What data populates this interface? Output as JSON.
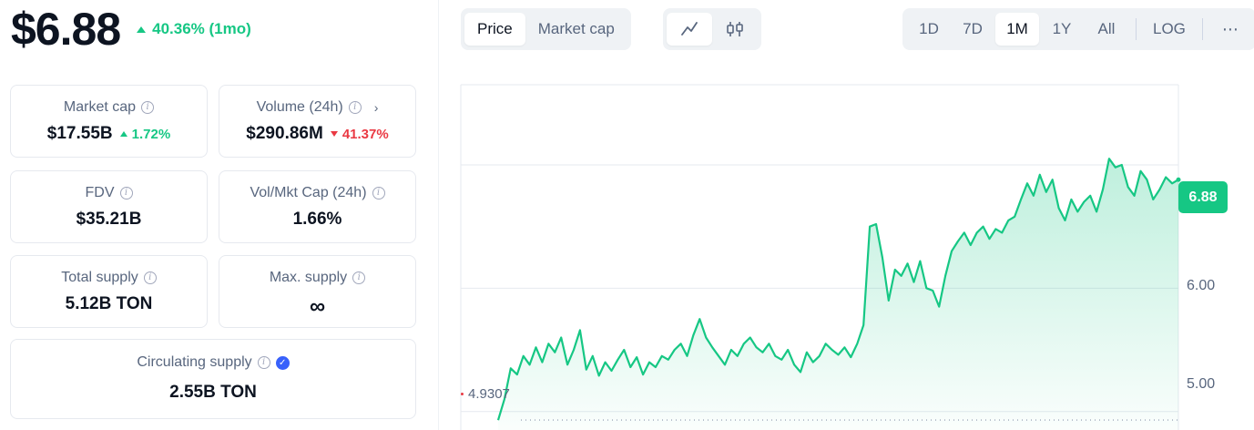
{
  "header": {
    "price": "$6.88",
    "change": "40.36% (1mo)",
    "change_direction": "up"
  },
  "stats": {
    "market_cap": {
      "label": "Market cap",
      "value": "$17.55B",
      "change": "1.72%",
      "direction": "up"
    },
    "volume": {
      "label": "Volume (24h)",
      "value": "$290.86M",
      "change": "41.37%",
      "direction": "down"
    },
    "fdv": {
      "label": "FDV",
      "value": "$35.21B"
    },
    "vol_mkt_cap": {
      "label": "Vol/Mkt Cap (24h)",
      "value": "1.66%"
    },
    "total_supply": {
      "label": "Total supply",
      "value": "5.12B TON"
    },
    "max_supply": {
      "label": "Max. supply",
      "value": "∞"
    },
    "circulating_supply": {
      "label": "Circulating supply",
      "value": "2.55B TON"
    }
  },
  "toolbar": {
    "metric_tabs": [
      {
        "label": "Price",
        "active": true
      },
      {
        "label": "Market cap",
        "active": false
      }
    ],
    "chart_types": [
      {
        "icon": "line-chart-icon",
        "active": true
      },
      {
        "icon": "candlestick-icon",
        "active": false
      }
    ],
    "ranges": [
      {
        "label": "1D",
        "active": false
      },
      {
        "label": "7D",
        "active": false
      },
      {
        "label": "1M",
        "active": true
      },
      {
        "label": "1Y",
        "active": false
      },
      {
        "label": "All",
        "active": false
      }
    ],
    "log_label": "LOG",
    "more_label": "⋯"
  },
  "chart_data": {
    "type": "area",
    "current_price_label": "6.88",
    "min_label": "4.9307",
    "y_ticks": [
      "6.00",
      "5.00"
    ],
    "ylim": [
      4.85,
      7.65
    ],
    "grid": true,
    "colors": {
      "line": "#16c784",
      "fill_top": "#16c784",
      "up": "#16c784",
      "down": "#ea3943",
      "accent": "#3861fb"
    },
    "series": [
      {
        "values": [
          4.93,
          5.1,
          5.35,
          5.3,
          5.45,
          5.38,
          5.52,
          5.4,
          5.55,
          5.48,
          5.6,
          5.38,
          5.5,
          5.66,
          5.34,
          5.45,
          5.29,
          5.4,
          5.33,
          5.42,
          5.5,
          5.36,
          5.44,
          5.3,
          5.4,
          5.36,
          5.45,
          5.42,
          5.5,
          5.55,
          5.45,
          5.62,
          5.75,
          5.6,
          5.52,
          5.45,
          5.38,
          5.5,
          5.45,
          5.55,
          5.6,
          5.52,
          5.48,
          5.55,
          5.45,
          5.42,
          5.5,
          5.38,
          5.32,
          5.48,
          5.4,
          5.45,
          5.55,
          5.5,
          5.46,
          5.52,
          5.44,
          5.55,
          5.7,
          6.5,
          6.52,
          6.25,
          5.9,
          6.15,
          6.1,
          6.2,
          6.05,
          6.22,
          6.0,
          5.98,
          5.85,
          6.1,
          6.3,
          6.38,
          6.45,
          6.35,
          6.45,
          6.5,
          6.4,
          6.48,
          6.45,
          6.55,
          6.58,
          6.72,
          6.85,
          6.75,
          6.92,
          6.78,
          6.88,
          6.65,
          6.55,
          6.72,
          6.62,
          6.7,
          6.75,
          6.62,
          6.8,
          7.05,
          6.98,
          7.0,
          6.82,
          6.75,
          6.95,
          6.88,
          6.72,
          6.8,
          6.9,
          6.85,
          6.88
        ]
      }
    ]
  }
}
